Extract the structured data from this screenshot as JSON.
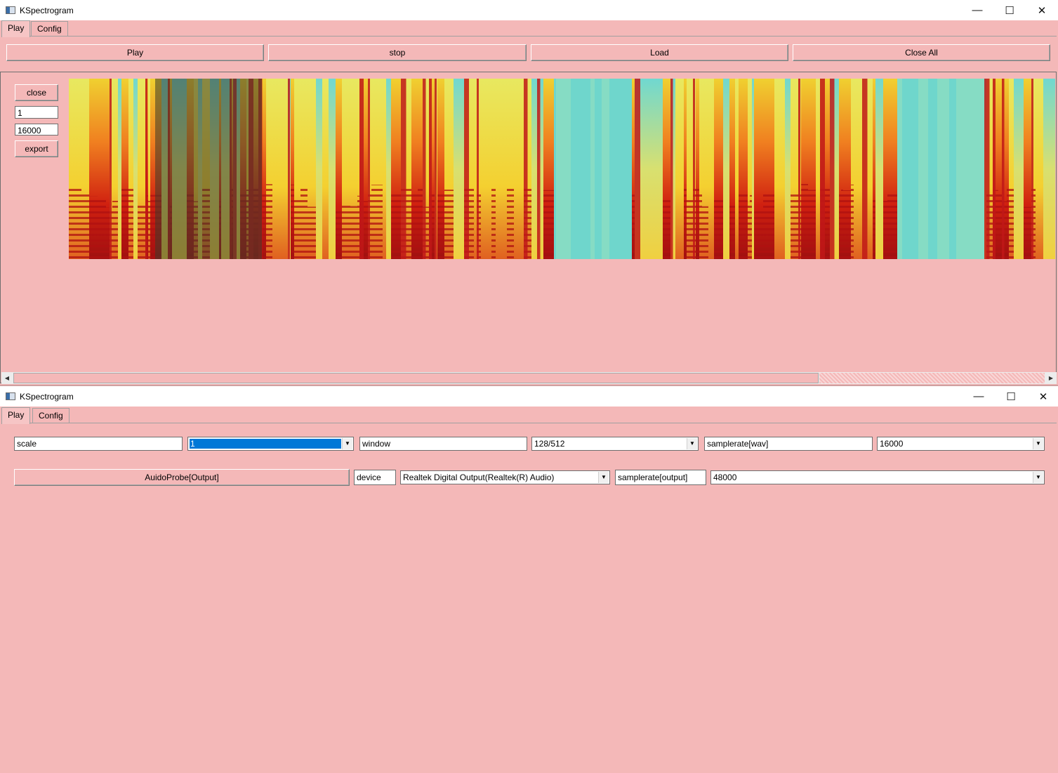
{
  "window1": {
    "title": "KSpectrogram",
    "controls": {
      "minimize": "—",
      "maximize": "☐",
      "close": "✕"
    },
    "tabs": [
      {
        "label": "Play"
      },
      {
        "label": "Config"
      }
    ],
    "active_tab": "Play",
    "toolbar": {
      "play_label": "Play",
      "stop_label": "stop",
      "load_label": "Load",
      "close_all_label": "Close All"
    },
    "side": {
      "close_label": "close",
      "field1_value": "1",
      "field2_value": "16000",
      "export_label": "export"
    },
    "spectrogram": {
      "icon": "spectrogram-image"
    }
  },
  "window2": {
    "title": "KSpectrogram",
    "controls": {
      "minimize": "—",
      "maximize": "☐",
      "close": "✕"
    },
    "tabs": [
      {
        "label": "Play"
      },
      {
        "label": "Config"
      }
    ],
    "active_tab": "Play",
    "config": {
      "scale_label": "scale",
      "scale_value": "1",
      "window_label": "window",
      "window_value": "128/512",
      "samplerate_wav_label": "samplerate[wav]",
      "samplerate_wav_value": "16000",
      "audio_probe_label": "AuidoProbe[Output]",
      "device_label": "device",
      "device_value": "Realtek Digital Output(Realtek(R) Audio)",
      "samplerate_output_label": "samplerate[output]",
      "samplerate_output_value": "48000"
    }
  },
  "colors": {
    "background": "#f4b8b8",
    "selection": "#0078d7"
  }
}
